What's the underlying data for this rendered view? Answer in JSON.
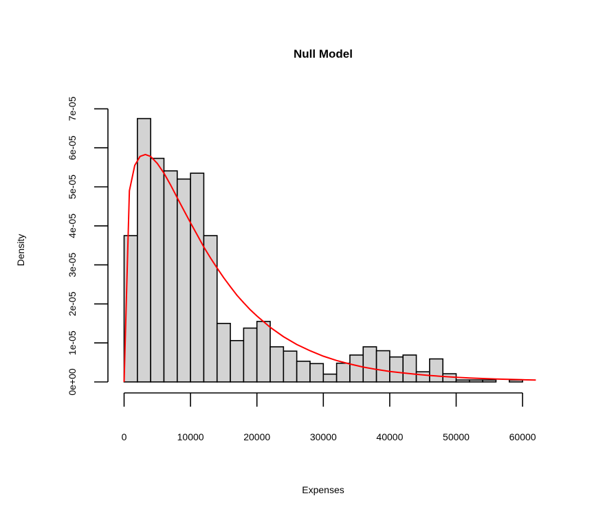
{
  "chart_data": {
    "type": "histogram",
    "title": "Null Model",
    "xlabel": "Expenses",
    "ylabel": "Density",
    "xlim": [
      0,
      60000
    ],
    "ylim": [
      0,
      7e-05
    ],
    "x_ticks": [
      0,
      10000,
      20000,
      30000,
      40000,
      50000,
      60000
    ],
    "x_tick_labels": [
      "0",
      "10000",
      "20000",
      "30000",
      "40000",
      "50000",
      "60000"
    ],
    "y_ticks": [
      0,
      1e-05,
      2e-05,
      3e-05,
      4e-05,
      5e-05,
      6e-05,
      7e-05
    ],
    "y_tick_labels": [
      "0e+00",
      "1e-05",
      "2e-05",
      "3e-05",
      "4e-05",
      "5e-05",
      "6e-05",
      "7e-05"
    ],
    "bin_width": 2000,
    "bins": [
      {
        "start": 0,
        "density": 3.75e-05
      },
      {
        "start": 2000,
        "density": 6.75e-05
      },
      {
        "start": 4000,
        "density": 5.73e-05
      },
      {
        "start": 6000,
        "density": 5.41e-05
      },
      {
        "start": 8000,
        "density": 5.2e-05
      },
      {
        "start": 10000,
        "density": 5.35e-05
      },
      {
        "start": 12000,
        "density": 3.75e-05
      },
      {
        "start": 14000,
        "density": 1.5e-05
      },
      {
        "start": 16000,
        "density": 1.06e-05
      },
      {
        "start": 18000,
        "density": 1.38e-05
      },
      {
        "start": 20000,
        "density": 1.55e-05
      },
      {
        "start": 22000,
        "density": 9e-06
      },
      {
        "start": 24000,
        "density": 7.9e-06
      },
      {
        "start": 26000,
        "density": 5.3e-06
      },
      {
        "start": 28000,
        "density": 4.7e-06
      },
      {
        "start": 30000,
        "density": 2e-06
      },
      {
        "start": 32000,
        "density": 4.8e-06
      },
      {
        "start": 34000,
        "density": 6.9e-06
      },
      {
        "start": 36000,
        "density": 9e-06
      },
      {
        "start": 38000,
        "density": 8e-06
      },
      {
        "start": 40000,
        "density": 6.4e-06
      },
      {
        "start": 42000,
        "density": 6.9e-06
      },
      {
        "start": 44000,
        "density": 2.6e-06
      },
      {
        "start": 46000,
        "density": 5.9e-06
      },
      {
        "start": 48000,
        "density": 2.1e-06
      },
      {
        "start": 50000,
        "density": 5e-07
      },
      {
        "start": 52000,
        "density": 5e-07
      },
      {
        "start": 54000,
        "density": 5e-07
      },
      {
        "start": 56000,
        "density": 0
      },
      {
        "start": 58000,
        "density": 5e-07
      }
    ],
    "curve": {
      "x": [
        0,
        800,
        1600,
        2400,
        3200,
        4000,
        5000,
        6000,
        7000,
        8000,
        9000,
        10000,
        11000,
        12000,
        13000,
        14000,
        15000,
        16000,
        17000,
        18000,
        19000,
        20000,
        22000,
        24000,
        26000,
        28000,
        30000,
        32000,
        34000,
        36000,
        38000,
        40000,
        42000,
        44000,
        46000,
        48000,
        50000,
        52000,
        54000,
        56000,
        58000,
        60000,
        62000
      ],
      "y": [
        0,
        4.9e-05,
        5.55e-05,
        5.78e-05,
        5.83e-05,
        5.78e-05,
        5.6e-05,
        5.35e-05,
        5.05e-05,
        4.72e-05,
        4.4e-05,
        4.08e-05,
        3.77e-05,
        3.46e-05,
        3.18e-05,
        2.92e-05,
        2.67e-05,
        2.44e-05,
        2.22e-05,
        2.03e-05,
        1.85e-05,
        1.69e-05,
        1.4e-05,
        1.16e-05,
        9.6e-06,
        8e-06,
        6.6e-06,
        5.5e-06,
        4.6e-06,
        3.8e-06,
        3.2e-06,
        2.7e-06,
        2.3e-06,
        1.95e-06,
        1.65e-06,
        1.4e-06,
        1.2e-06,
        1.02e-06,
        8.8e-07,
        7.6e-07,
        6.6e-07,
        5.7e-07,
        5e-07
      ]
    },
    "bar_fill": "#d3d3d3",
    "bar_stroke": "#000000",
    "curve_color": "#ff0000"
  }
}
